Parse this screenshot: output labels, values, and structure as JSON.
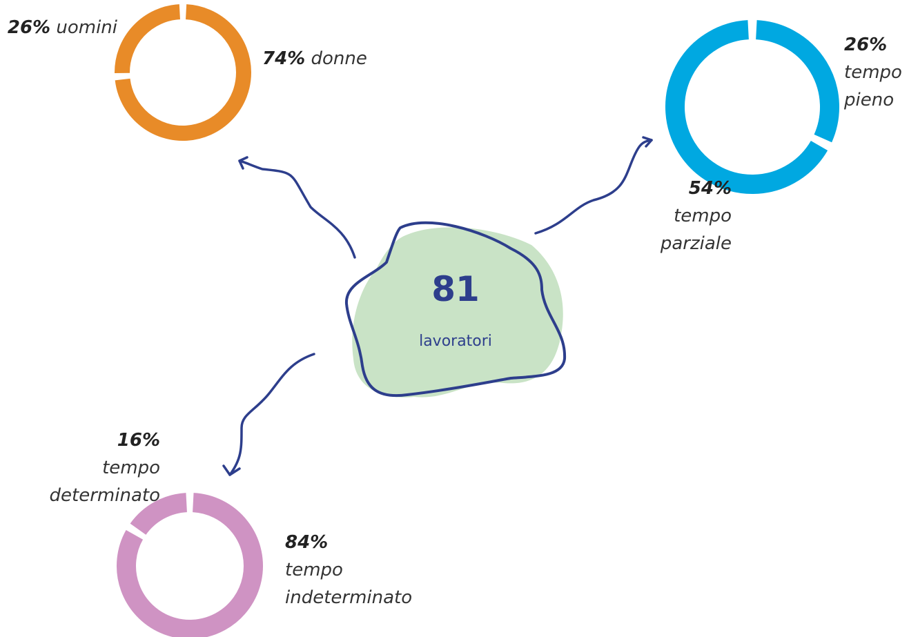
{
  "center": {
    "value": 81,
    "label": "lavoratori"
  },
  "chart_data": [
    {
      "type": "donut",
      "categories": [
        "uomini",
        "donne"
      ],
      "values": [
        26,
        74
      ],
      "value_labels": [
        "26%",
        "74%"
      ],
      "color": "#e88b28"
    },
    {
      "type": "donut",
      "categories": [
        "tempo pieno",
        "tempo parziale"
      ],
      "values": [
        26,
        54
      ],
      "value_labels": [
        "26%",
        "54%"
      ],
      "color": "#00a8e1"
    },
    {
      "type": "donut",
      "categories": [
        "tempo determinato",
        "tempo indeterminato"
      ],
      "values": [
        16,
        84
      ],
      "value_labels": [
        "16%",
        "84%"
      ],
      "color": "#cf93c3"
    }
  ]
}
